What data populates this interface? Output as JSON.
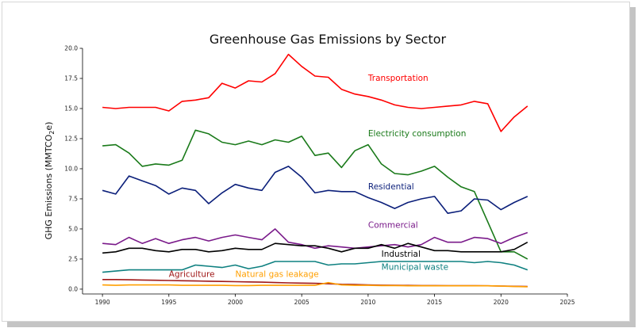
{
  "chart_data": {
    "type": "line",
    "title": "Greenhouse Gas Emissions by Sector",
    "xlabel": "",
    "ylabel": "GHG Emissions (MMTCO",
    "ylabel_sub": "2",
    "ylabel_end": "e)",
    "xlim": [
      1988.5,
      2025
    ],
    "ylim": [
      -0.4,
      20
    ],
    "xticks": [
      1990,
      1995,
      2000,
      2005,
      2010,
      2015,
      2020,
      2025
    ],
    "yticks": [
      0.0,
      2.5,
      5.0,
      7.5,
      10.0,
      12.5,
      15.0,
      17.5,
      20.0
    ],
    "grid": false,
    "x": [
      1990,
      1991,
      1992,
      1993,
      1994,
      1995,
      1996,
      1997,
      1998,
      1999,
      2000,
      2001,
      2002,
      2003,
      2004,
      2005,
      2006,
      2007,
      2008,
      2009,
      2010,
      2011,
      2012,
      2013,
      2014,
      2015,
      2016,
      2017,
      2018,
      2019,
      2020,
      2021,
      2022
    ],
    "series": [
      {
        "name": "Transportation",
        "color": "#ff0000",
        "label_at": [
          2010,
          17.3
        ],
        "values": [
          15.1,
          15.0,
          15.1,
          15.1,
          15.1,
          14.8,
          15.6,
          15.7,
          15.9,
          17.1,
          16.7,
          17.3,
          17.2,
          17.9,
          19.5,
          18.5,
          17.7,
          17.6,
          16.6,
          16.2,
          16.0,
          15.7,
          15.3,
          15.1,
          15.0,
          15.1,
          15.2,
          15.3,
          15.6,
          15.4,
          13.1,
          14.3,
          15.2
        ]
      },
      {
        "name": "Electricity consumption",
        "color": "#1a7a1a",
        "label_at": [
          2010,
          12.7
        ],
        "values": [
          11.9,
          12.0,
          11.3,
          10.2,
          10.4,
          10.3,
          10.7,
          13.2,
          12.9,
          12.2,
          12.0,
          12.3,
          12.0,
          12.4,
          12.2,
          12.7,
          11.1,
          11.3,
          10.1,
          11.5,
          12.0,
          10.4,
          9.6,
          9.5,
          9.8,
          10.2,
          9.3,
          8.5,
          8.1,
          5.6,
          3.1,
          3.1,
          2.5
        ]
      },
      {
        "name": "Residential",
        "color": "#0b1f7a",
        "label_at": [
          2010,
          8.3
        ],
        "values": [
          8.2,
          7.9,
          9.4,
          9.0,
          8.6,
          7.9,
          8.4,
          8.2,
          7.1,
          8.0,
          8.7,
          8.4,
          8.2,
          9.7,
          10.2,
          9.3,
          8.0,
          8.2,
          8.1,
          8.1,
          7.6,
          7.2,
          6.7,
          7.2,
          7.5,
          7.7,
          6.3,
          6.5,
          7.5,
          7.4,
          6.6,
          7.2,
          7.7
        ]
      },
      {
        "name": "Commercial",
        "color": "#7a1a8a",
        "label_at": [
          2010,
          5.1
        ],
        "values": [
          3.8,
          3.7,
          4.3,
          3.8,
          4.2,
          3.8,
          4.1,
          4.3,
          4.0,
          4.3,
          4.5,
          4.3,
          4.1,
          5.0,
          3.9,
          3.7,
          3.4,
          3.6,
          3.5,
          3.4,
          3.5,
          3.6,
          3.7,
          3.5,
          3.7,
          4.3,
          3.9,
          3.9,
          4.3,
          4.2,
          3.8,
          4.3,
          4.7
        ]
      },
      {
        "name": "Industrial",
        "color": "#000000",
        "label_at": [
          2011,
          2.7
        ],
        "values": [
          3.0,
          3.1,
          3.4,
          3.4,
          3.2,
          3.1,
          3.3,
          3.3,
          3.1,
          3.2,
          3.4,
          3.3,
          3.3,
          3.8,
          3.7,
          3.6,
          3.6,
          3.4,
          3.1,
          3.4,
          3.4,
          3.7,
          3.4,
          3.8,
          3.5,
          3.2,
          3.2,
          3.1,
          3.1,
          3.1,
          3.1,
          3.3,
          3.9
        ]
      },
      {
        "name": "Municipal waste",
        "color": "#0e8080",
        "label_at": [
          2011,
          1.6
        ],
        "values": [
          1.4,
          1.5,
          1.6,
          1.6,
          1.6,
          1.6,
          1.6,
          2.0,
          1.9,
          1.8,
          2.0,
          1.7,
          1.9,
          2.3,
          2.3,
          2.3,
          2.3,
          2.0,
          2.1,
          2.1,
          2.2,
          2.3,
          2.3,
          2.3,
          2.3,
          2.3,
          2.3,
          2.3,
          2.2,
          2.3,
          2.2,
          2.0,
          1.6
        ]
      },
      {
        "name": "Agriculture",
        "color": "#a01818",
        "label_at": [
          1995,
          1.0
        ],
        "values": [
          0.8,
          0.8,
          0.78,
          0.76,
          0.74,
          0.72,
          0.7,
          0.68,
          0.66,
          0.64,
          0.62,
          0.6,
          0.58,
          0.55,
          0.52,
          0.5,
          0.48,
          0.45,
          0.4,
          0.38,
          0.35,
          0.33,
          0.32,
          0.31,
          0.3,
          0.3,
          0.29,
          0.29,
          0.29,
          0.28,
          0.26,
          0.24,
          0.22
        ]
      },
      {
        "name": "Natural gas leakage",
        "color": "#ff9f00",
        "label_at": [
          2000,
          1.0
        ],
        "values": [
          0.35,
          0.32,
          0.35,
          0.35,
          0.35,
          0.35,
          0.32,
          0.32,
          0.32,
          0.32,
          0.3,
          0.3,
          0.32,
          0.32,
          0.32,
          0.32,
          0.32,
          0.55,
          0.35,
          0.32,
          0.32,
          0.3,
          0.3,
          0.28,
          0.28,
          0.28,
          0.28,
          0.28,
          0.28,
          0.28,
          0.25,
          0.22,
          0.2
        ]
      }
    ]
  }
}
